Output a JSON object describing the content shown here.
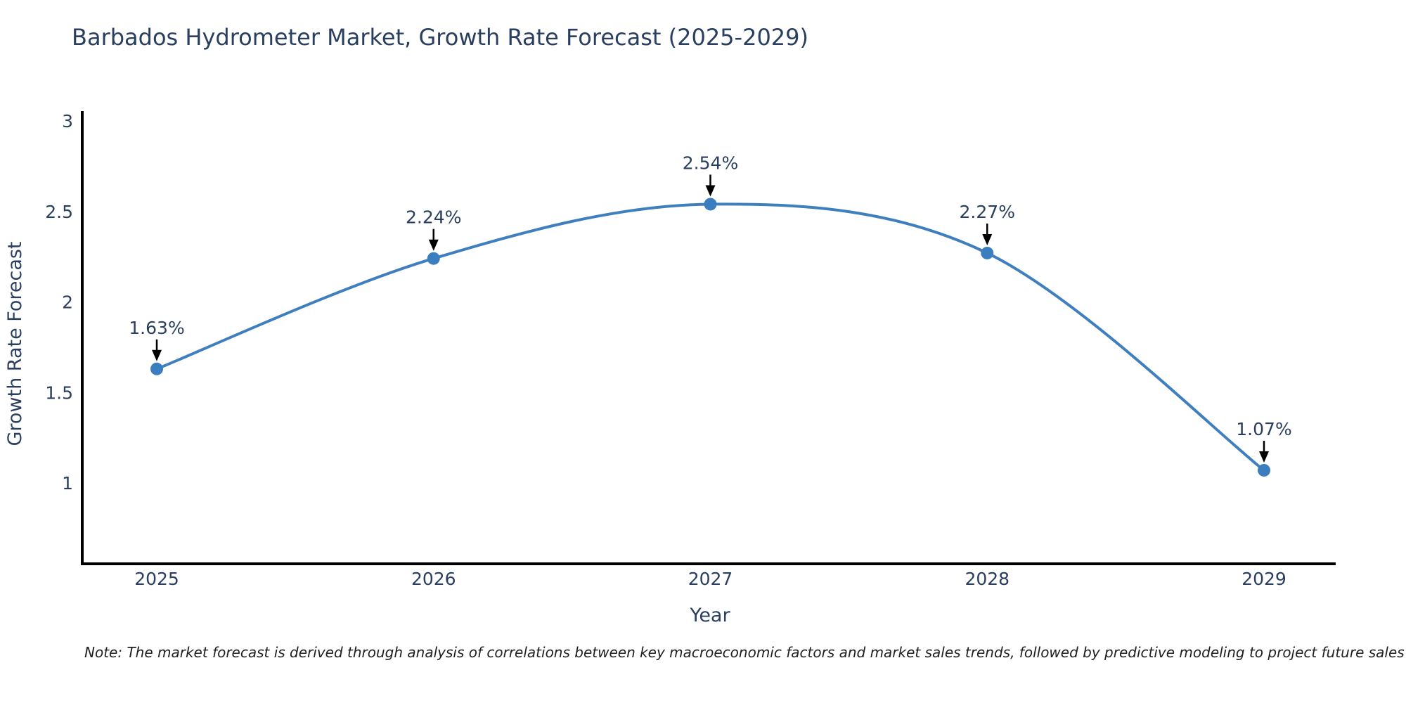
{
  "title": "Barbados Hydrometer Market, Growth Rate Forecast (2025-2029)",
  "note": "Note: The market forecast is derived through analysis of correlations between key macroeconomic factors and market sales trends, followed by predictive modeling to project future sales",
  "chart_data": {
    "type": "line",
    "title": "Barbados Hydrometer Market, Growth Rate Forecast (2025-2029)",
    "xlabel": "Year",
    "ylabel": "Growth Rate Forecast",
    "x": [
      2025,
      2026,
      2027,
      2028,
      2029
    ],
    "values": [
      1.63,
      2.24,
      2.54,
      2.27,
      1.07
    ],
    "point_labels": [
      "1.63%",
      "2.24%",
      "2.54%",
      "2.27%",
      "1.07%"
    ],
    "x_ticks": [
      "2025",
      "2026",
      "2027",
      "2028",
      "2029"
    ],
    "y_ticks": [
      "1",
      "1.5",
      "2",
      "2.5",
      "3"
    ],
    "y_tick_values": [
      1,
      1.5,
      2,
      2.5,
      3
    ],
    "ylim": [
      0.55,
      3.05
    ],
    "grid": false,
    "legend": "none",
    "line_shape": "spline",
    "colors": {
      "line": "#3f7fbe",
      "marker": "#3a7ebf",
      "axis": "#000000",
      "text": "#2a3f5f",
      "arrow": "#000000"
    }
  }
}
